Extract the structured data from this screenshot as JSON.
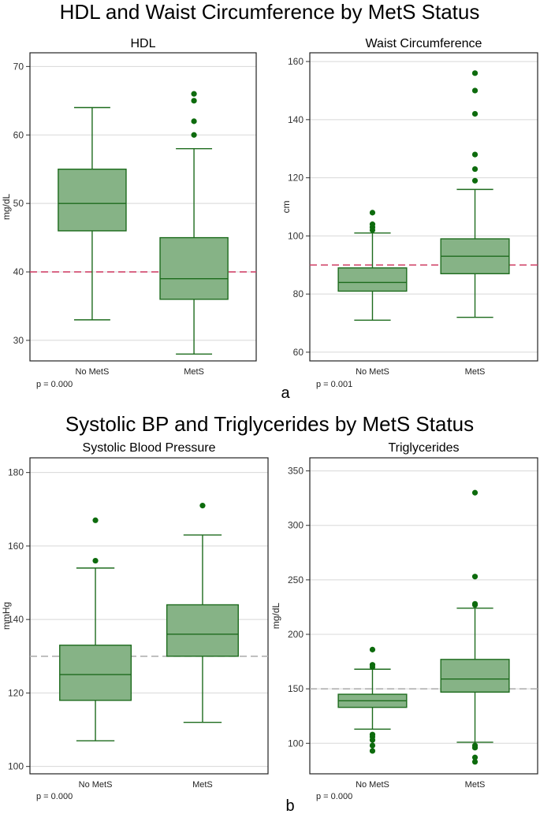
{
  "figure": {
    "title_a": "HDL and Waist Circumference by MetS Status",
    "title_b": "Systolic BP and Triglycerides by MetS Status",
    "label_a": "a",
    "label_b": "b"
  },
  "colors": {
    "box_fill": "#86b386",
    "box_stroke": "#1d6b1d",
    "outlier": "#0d6b0d",
    "ref_red": "#d0446a",
    "ref_gray": "#b0b0b0",
    "grid": "#d8d8d8"
  },
  "chart_data": [
    {
      "type": "box",
      "title": "HDL",
      "ylabel": "mg/dL",
      "ylim": [
        27,
        72
      ],
      "yticks": [
        30,
        40,
        50,
        60,
        70
      ],
      "grid": true,
      "categories": [
        "No MetS",
        "MetS"
      ],
      "boxes": [
        {
          "category": "No MetS",
          "whisker_low": 33,
          "q1": 46,
          "median": 50,
          "q3": 55,
          "whisker_high": 64,
          "outliers": []
        },
        {
          "category": "MetS",
          "whisker_low": 28,
          "q1": 36,
          "median": 39,
          "q3": 45,
          "whisker_high": 58,
          "outliers": [
            60,
            62,
            65,
            66
          ]
        }
      ],
      "reference_line": {
        "y": 40,
        "style": "red-dashed"
      },
      "p_value": "p = 0.000"
    },
    {
      "type": "box",
      "title": "Waist Circumference",
      "ylabel": "cm",
      "ylim": [
        57,
        163
      ],
      "yticks": [
        60,
        80,
        100,
        120,
        140,
        160
      ],
      "grid": true,
      "categories": [
        "No MetS",
        "MetS"
      ],
      "boxes": [
        {
          "category": "No MetS",
          "whisker_low": 71,
          "q1": 81,
          "median": 84,
          "q3": 89,
          "whisker_high": 101,
          "outliers": [
            102,
            103,
            104,
            108
          ]
        },
        {
          "category": "MetS",
          "whisker_low": 72,
          "q1": 87,
          "median": 93,
          "q3": 99,
          "whisker_high": 116,
          "outliers": [
            119,
            123,
            128,
            142,
            150,
            156
          ]
        }
      ],
      "reference_line": {
        "y": 90,
        "style": "red-dashed"
      },
      "p_value": "p = 0.001"
    },
    {
      "type": "box",
      "title": "Systolic Blood Pressure",
      "ylabel": "mmHg",
      "ylim": [
        98,
        184
      ],
      "yticks": [
        100,
        120,
        140,
        160,
        180
      ],
      "grid": true,
      "categories": [
        "No MetS",
        "MetS"
      ],
      "boxes": [
        {
          "category": "No MetS",
          "whisker_low": 107,
          "q1": 118,
          "median": 125,
          "q3": 133,
          "whisker_high": 154,
          "outliers": [
            156,
            167
          ]
        },
        {
          "category": "MetS",
          "whisker_low": 112,
          "q1": 130,
          "median": 136,
          "q3": 144,
          "whisker_high": 163,
          "outliers": [
            171
          ]
        }
      ],
      "reference_line": {
        "y": 130,
        "style": "gray-dashed"
      },
      "p_value": "p = 0.000"
    },
    {
      "type": "box",
      "title": "Triglycerides",
      "ylabel": "mg/dL",
      "ylim": [
        72,
        362
      ],
      "yticks": [
        100,
        150,
        200,
        250,
        300,
        350
      ],
      "grid": true,
      "categories": [
        "No MetS",
        "MetS"
      ],
      "boxes": [
        {
          "category": "No MetS",
          "whisker_low": 113,
          "q1": 133,
          "median": 139,
          "q3": 145,
          "whisker_high": 168,
          "outliers": [
            93,
            98,
            103,
            106,
            108,
            170,
            172,
            186
          ]
        },
        {
          "category": "MetS",
          "whisker_low": 101,
          "q1": 147,
          "median": 159,
          "q3": 177,
          "whisker_high": 224,
          "outliers": [
            83,
            87,
            96,
            98,
            227,
            228,
            253,
            330
          ]
        }
      ],
      "reference_line": {
        "y": 150,
        "style": "gray-dashed"
      },
      "p_value": "p = 0.000"
    }
  ]
}
